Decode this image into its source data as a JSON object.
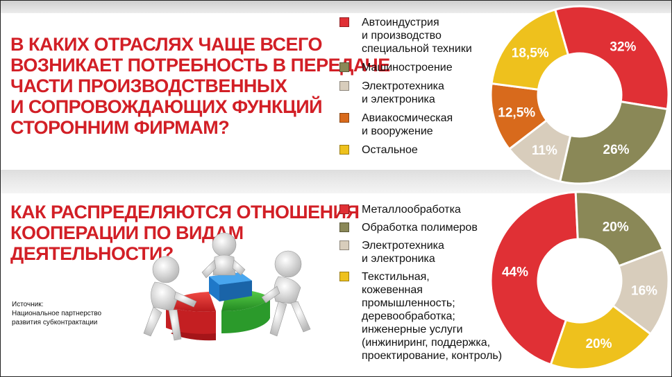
{
  "question1": {
    "lines": [
      "В каких отраслях чаще всего",
      "возникает потребность в передаче",
      "части производственных",
      "и сопровождающих функций",
      "сторонним фирмам?"
    ]
  },
  "question2": {
    "lines": [
      "Как распределяются отношения",
      "кооперации по видам",
      "деятельности?"
    ]
  },
  "source": {
    "lines": [
      "Источник:",
      "Национальное партнерство",
      "развития субконтрактации"
    ]
  },
  "chart_data": [
    {
      "type": "pie",
      "donut": true,
      "legend_position": "left",
      "categories": [
        "Автоиндустрия и производство специальной техники",
        "Машиностроение",
        "Электротехника и электроника",
        "Авиакосмическая и вооружение",
        "Остальное"
      ],
      "legend_lines": [
        [
          "Автоиндустрия",
          "и производство",
          "специальной техники"
        ],
        [
          "Машиностроение"
        ],
        [
          "Электротехника",
          "и электроника"
        ],
        [
          "Авиакосмическая",
          "и вооружение"
        ],
        [
          "Остальное"
        ]
      ],
      "values": [
        32,
        26,
        11,
        12.5,
        18.5
      ],
      "labels": [
        "32%",
        "26%",
        "11%",
        "12,5%",
        "18,5%"
      ],
      "colors": [
        "#e03035",
        "#8a8857",
        "#d8cdbc",
        "#d86a1c",
        "#eec11d"
      ],
      "start_angle_deg": 344
    },
    {
      "type": "pie",
      "donut": true,
      "legend_position": "left",
      "categories": [
        "Металлообработка",
        "Обработка полимеров",
        "Электротехника и электроника",
        "Текстильная, кожевенная промышленность; деревообработка; инженерные услуги (инжиниринг, поддержка, проектирование, контроль)"
      ],
      "legend_lines": [
        [
          "Металлообработка"
        ],
        [
          "Обработка полимеров"
        ],
        [
          "Электротехника",
          "и электроника"
        ],
        [
          "Текстильная,",
          "кожевенная",
          "промышленность;",
          "деревообработка;",
          "инженерные услуги",
          "(инжиниринг, поддержка,",
          "проектирование, контроль)"
        ]
      ],
      "values": [
        44,
        20,
        16,
        20
      ],
      "labels": [
        "44%",
        "20%",
        "16%",
        "20%"
      ],
      "colors": [
        "#e03035",
        "#8a8857",
        "#d8cdbc",
        "#eec11d"
      ],
      "start_angle_deg": 199
    }
  ]
}
